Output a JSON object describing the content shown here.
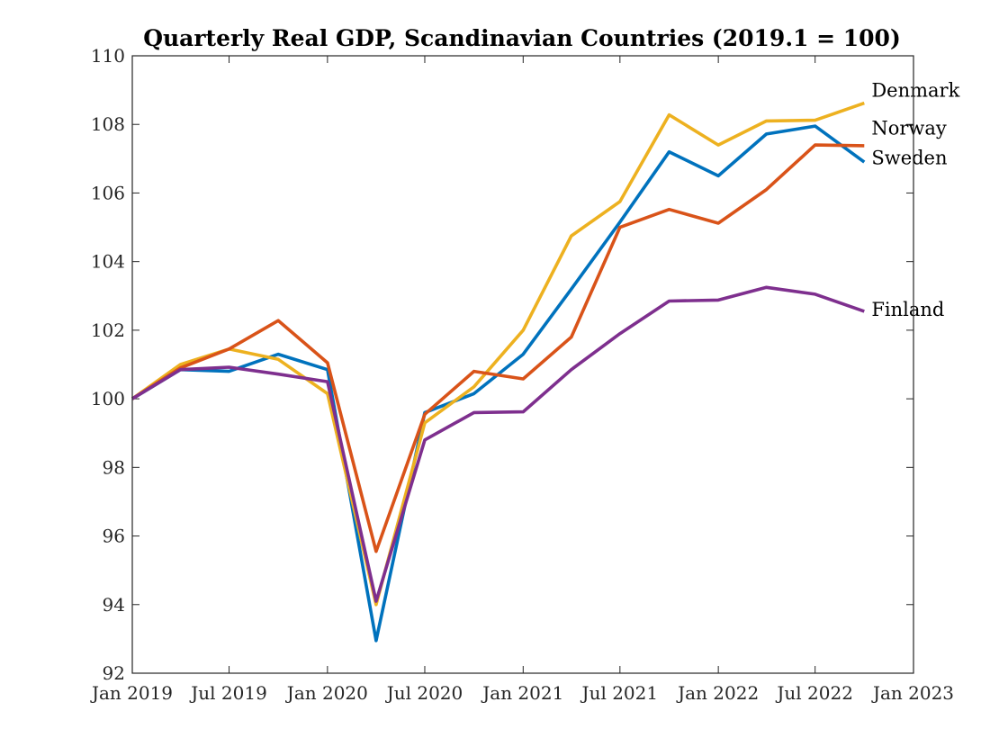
{
  "chart_data": {
    "type": "line",
    "title": "Quarterly Real GDP, Scandinavian Countries (2019.1 = 100)",
    "xlabel": "",
    "ylabel": "",
    "x": [
      "2019-01-01",
      "2019-04-01",
      "2019-07-01",
      "2019-10-01",
      "2020-01-01",
      "2020-04-01",
      "2020-07-01",
      "2020-10-01",
      "2021-01-01",
      "2021-04-01",
      "2021-07-01",
      "2021-10-01",
      "2022-01-01",
      "2022-04-01",
      "2022-07-01",
      "2022-10-01"
    ],
    "xlim": [
      "2019-01-01",
      "2023-01-01"
    ],
    "ylim": [
      92,
      110
    ],
    "x_ticks": [
      "2019-01-01",
      "2019-07-01",
      "2020-01-01",
      "2020-07-01",
      "2021-01-01",
      "2021-07-01",
      "2022-01-01",
      "2022-07-01",
      "2023-01-01"
    ],
    "x_tick_labels": [
      "Jan 2019",
      "Jul 2019",
      "Jan 2020",
      "Jul 2020",
      "Jan 2021",
      "Jul 2021",
      "Jan 2022",
      "Jul 2022",
      "Jan 2023"
    ],
    "y_ticks": [
      92,
      94,
      96,
      98,
      100,
      102,
      104,
      106,
      108,
      110
    ],
    "y_tick_labels": [
      "92",
      "94",
      "96",
      "98",
      "100",
      "102",
      "104",
      "106",
      "108",
      "110"
    ],
    "grid": false,
    "legend": "inline labels at right end of lines",
    "series": [
      {
        "name": "Sweden",
        "color": "#0072bd",
        "values": [
          100,
          100.85,
          100.8,
          101.3,
          100.85,
          92.95,
          99.6,
          100.15,
          101.3,
          103.2,
          105.15,
          107.2,
          106.5,
          107.72,
          107.95,
          106.9
        ]
      },
      {
        "name": "Denmark",
        "color": "#edb120",
        "values": [
          100,
          101.0,
          101.45,
          101.15,
          100.15,
          94.0,
          99.3,
          100.35,
          102.0,
          104.75,
          105.75,
          108.28,
          107.4,
          108.1,
          108.12,
          108.62
        ]
      },
      {
        "name": "Norway",
        "color": "#d95319",
        "values": [
          100,
          100.9,
          101.45,
          102.28,
          101.05,
          95.55,
          99.55,
          100.8,
          100.58,
          101.8,
          105.0,
          105.52,
          105.12,
          106.1,
          107.4,
          107.38
        ]
      },
      {
        "name": "Finland",
        "color": "#7e2f8e",
        "values": [
          100,
          100.85,
          100.92,
          100.72,
          100.5,
          94.1,
          98.8,
          99.6,
          99.62,
          100.85,
          101.9,
          102.85,
          102.88,
          103.25,
          103.05,
          102.55
        ]
      }
    ]
  }
}
